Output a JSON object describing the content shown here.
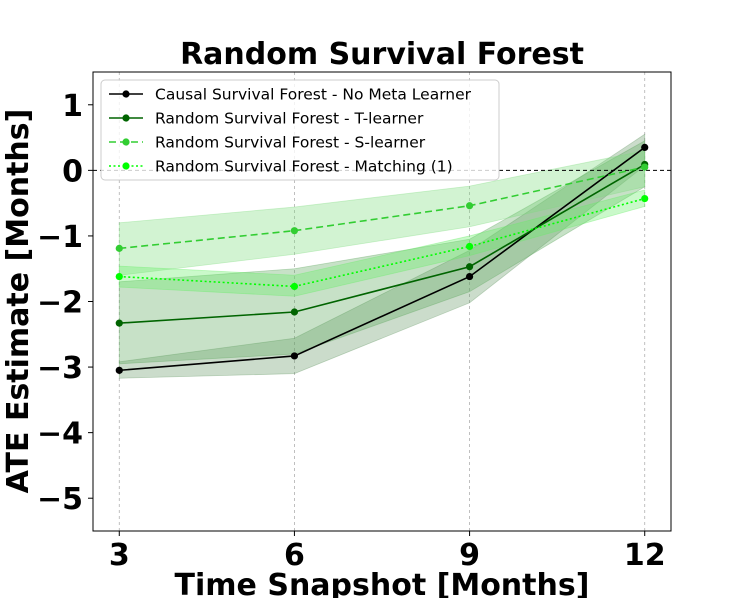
{
  "chart_data": {
    "type": "line",
    "title": "Random Survival Forest",
    "xlabel": "Time Snapshot [Months]",
    "ylabel": "ATE Estimate [Months]",
    "x": [
      3,
      6,
      9,
      12
    ],
    "xticks": [
      "3",
      "6",
      "9",
      "12"
    ],
    "yticks": [
      "1",
      "0",
      "−1",
      "−2",
      "−3",
      "−4",
      "−5"
    ],
    "ytick_values": [
      1,
      0,
      -1,
      -2,
      -3,
      -4,
      -5
    ],
    "xlim": [
      2.55,
      12.45
    ],
    "ylim": [
      -5.5,
      1.5
    ],
    "grid": "vertical dashed",
    "legend_position": "upper-left",
    "reference_line": 0,
    "series": [
      {
        "name": "Causal Survival Forest - No Meta Learner",
        "color": "#000000",
        "line_style": "solid",
        "values": [
          -3.05,
          -2.83,
          -1.62,
          0.35
        ],
        "lower": [
          -3.17,
          -3.1,
          -2.02,
          0.07
        ],
        "upper": [
          -2.92,
          -2.56,
          -1.22,
          0.55
        ],
        "band_color": "#6a9a6a"
      },
      {
        "name": "Random Survival Forest - T-learner",
        "color": "#006400",
        "line_style": "solid",
        "values": [
          -2.33,
          -2.16,
          -1.47,
          0.09
        ],
        "lower": [
          -2.95,
          -2.8,
          -1.85,
          -0.25
        ],
        "upper": [
          -1.7,
          -1.5,
          -1.05,
          0.45
        ],
        "band_color": "#5fa85f"
      },
      {
        "name": "Random Survival Forest - S-learner",
        "color": "#32cd32",
        "line_style": "dashed",
        "values": [
          -1.19,
          -0.92,
          -0.54,
          0.05
        ],
        "lower": [
          -1.6,
          -1.28,
          -0.86,
          -0.25
        ],
        "upper": [
          -0.8,
          -0.56,
          -0.24,
          0.3
        ],
        "band_color": "#7fdc7f"
      },
      {
        "name": "Random Survival Forest - Matching (1)",
        "color": "#00ff00",
        "line_style": "dotted",
        "values": [
          -1.62,
          -1.77,
          -1.16,
          -0.43
        ],
        "lower": [
          -1.78,
          -1.92,
          -1.3,
          -0.55
        ],
        "upper": [
          -1.46,
          -1.6,
          -1.0,
          -0.3
        ],
        "band_color": "#66ee66"
      }
    ]
  }
}
